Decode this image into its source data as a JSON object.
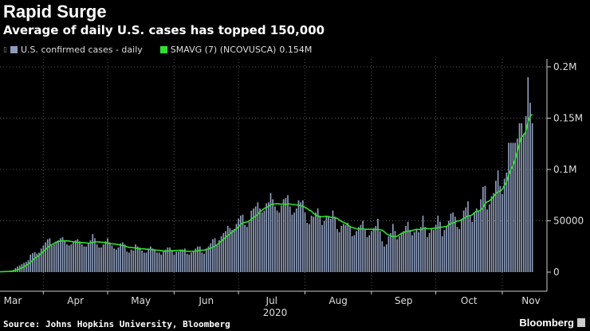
{
  "title": "Rapid Surge",
  "subtitle": "Average of daily U.S. cases has topped 150,000",
  "source": "Source: Johns Hopkins University, Bloomberg",
  "brand": "Bloomberg",
  "colors": {
    "bars": "#8d9cbc",
    "sma": "#30e030",
    "background": "#000000",
    "grid": "#555555"
  },
  "chart_data": {
    "type": "bar",
    "title": "Rapid Surge",
    "subtitle": "Average of daily U.S. cases has topped 150,000",
    "start_date": "2020-03-12",
    "x_tick_labels": [
      "Mar",
      "Apr",
      "May",
      "Jun",
      "Jul",
      "Aug",
      "Sep",
      "Oct",
      "Nov"
    ],
    "x_year_label": "2020",
    "y_tick_labels": [
      "0",
      "50000",
      "0.1M",
      "0.15M",
      "0.2M"
    ],
    "y_ticks": [
      0,
      50000,
      100000,
      150000,
      200000
    ],
    "ylim": [
      0,
      210000
    ],
    "y_axis_side": "right",
    "grid": true,
    "legend_placement": "top-left",
    "series": [
      {
        "name": "U.S. confirmed cases - daily",
        "kind": "bar",
        "values": [
          400,
          500,
          700,
          900,
          1100,
          1500,
          2200,
          4000,
          5500,
          6500,
          7800,
          9000,
          10000,
          11500,
          17000,
          18500,
          19500,
          18000,
          19000,
          23000,
          26000,
          29000,
          32000,
          33000,
          26000,
          27000,
          30000,
          31000,
          33000,
          34000,
          31000,
          27000,
          26000,
          27000,
          29000,
          31000,
          32000,
          30000,
          27000,
          25000,
          25000,
          28000,
          31000,
          37000,
          33000,
          27000,
          24000,
          24000,
          27000,
          30000,
          33000,
          29000,
          26000,
          23000,
          22000,
          24000,
          28000,
          29000,
          27000,
          20000,
          19000,
          22000,
          21000,
          27000,
          25000,
          24000,
          21000,
          19000,
          19000,
          22000,
          25000,
          23000,
          22000,
          19000,
          19000,
          17000,
          20000,
          22000,
          24000,
          24000,
          21000,
          17000,
          20000,
          20000,
          22000,
          22000,
          23000,
          18000,
          17000,
          19000,
          21000,
          23000,
          25000,
          25000,
          19000,
          18000,
          23000,
          25000,
          28000,
          32000,
          33000,
          27000,
          31000,
          35000,
          38000,
          40000,
          45000,
          43000,
          41000,
          42000,
          47000,
          52000,
          55000,
          56000,
          46000,
          44000,
          49000,
          60000,
          62000,
          64000,
          68000,
          62000,
          58000,
          60000,
          67000,
          68000,
          77000,
          71000,
          64000,
          60000,
          58000,
          65000,
          71000,
          72000,
          75000,
          64000,
          56000,
          58000,
          62000,
          70000,
          68000,
          70000,
          58000,
          48000,
          47000,
          55000,
          54000,
          58000,
          62000,
          55000,
          46000,
          50000,
          55000,
          54000,
          52000,
          60000,
          54000,
          42000,
          39000,
          45000,
          47000,
          46000,
          48000,
          44000,
          35000,
          36000,
          40000,
          44000,
          46000,
          50000,
          42000,
          34000,
          36000,
          40000,
          43000,
          45000,
          52000,
          40000,
          30000,
          25000,
          27000,
          35000,
          38000,
          47000,
          40000,
          32000,
          35000,
          38000,
          40000,
          45000,
          49000,
          41000,
          36000,
          39000,
          42000,
          39000,
          44000,
          55000,
          44000,
          34000,
          38000,
          43000,
          41000,
          46000,
          55000,
          49000,
          35000,
          41000,
          45000,
          50000,
          57000,
          58000,
          54000,
          44000,
          42000,
          52000,
          60000,
          63000,
          69000,
          55000,
          49000,
          58000,
          62000,
          60000,
          71000,
          83000,
          84000,
          61000,
          66000,
          74000,
          77000,
          89000,
          99000,
          84000,
          76000,
          91000,
          97000,
          126000,
          126000,
          126000,
          126000,
          130000,
          145000,
          145000,
          135000,
          152000,
          190000,
          165000,
          145000
        ]
      },
      {
        "name": "SMAVG (7) (NCOVUSCA)",
        "kind": "line",
        "window": 7,
        "last_value_label": "0.154M"
      }
    ]
  }
}
